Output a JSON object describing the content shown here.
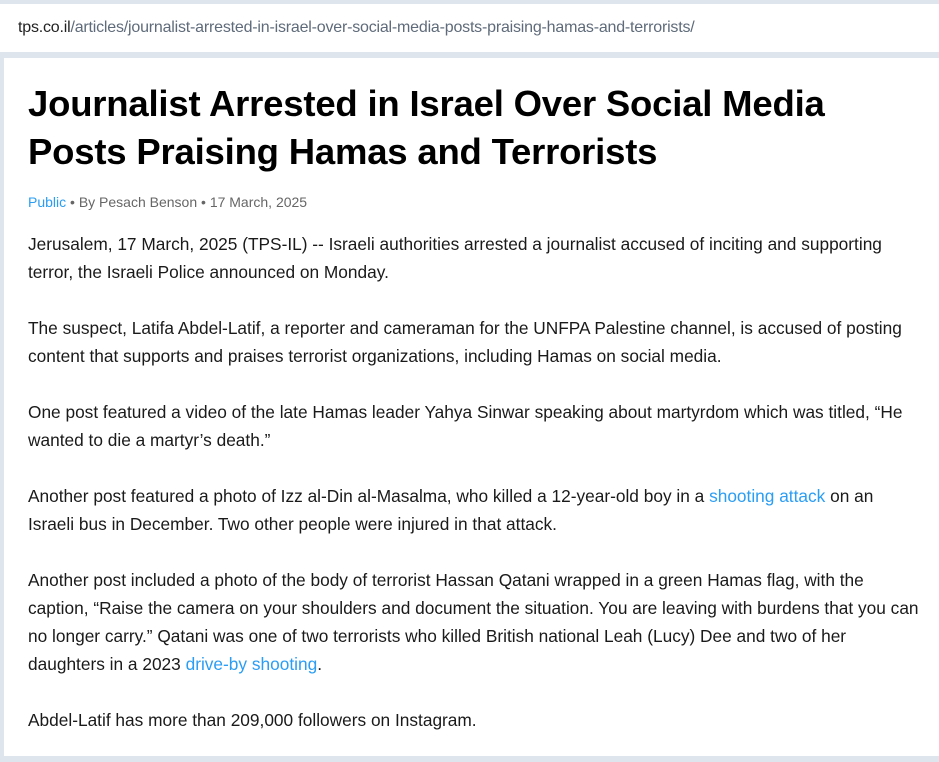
{
  "browser": {
    "url_domain": "tps.co.il",
    "url_path": "/articles/journalist-arrested-in-israel-over-social-media-posts-praising-hamas-and-terrorists/"
  },
  "article": {
    "title": "Journalist Arrested in Israel Over Social Media Posts Praising Hamas and Terrorists",
    "category": "Public",
    "separator": " • ",
    "byline": "By Pesach Benson",
    "date": "17 March, 2025",
    "paragraphs": [
      {
        "text": "Jerusalem, 17 March, 2025 (TPS-IL) -- Israeli authorities arrested a journalist accused of inciting and supporting terror, the Israeli Police announced on Monday."
      },
      {
        "text": "The suspect, Latifa Abdel-Latif, a reporter and cameraman for the UNFPA Palestine channel, is accused of posting content that supports and praises terrorist organizations, including Hamas on social media."
      },
      {
        "text": "One post featured a video of the late Hamas leader Yahya Sinwar speaking about martyrdom which was titled, “He wanted to die a martyr’s death.”"
      },
      {
        "before": "Another post featured a photo of Izz al-Din al-Masalma, who killed a 12-year-old boy in a ",
        "link": "shooting attack",
        "after": " on an Israeli bus in December. Two other people were injured in that attack."
      },
      {
        "before": "Another post included a photo of the body of terrorist Hassan Qatani wrapped in a green Hamas flag, with the caption, “Raise the camera on your shoulders and document the situation. You are leaving with burdens that you can no longer carry.” Qatani was one of two terrorists who killed British national Leah (Lucy) Dee and two of her daughters in a 2023 ",
        "link": "drive-by shooting",
        "after": "."
      },
      {
        "text": "Abdel-Latif has more than 209,000 followers on Instagram."
      }
    ]
  },
  "colors": {
    "link": "#2a9df4",
    "chrome": "#dfe5ec"
  }
}
